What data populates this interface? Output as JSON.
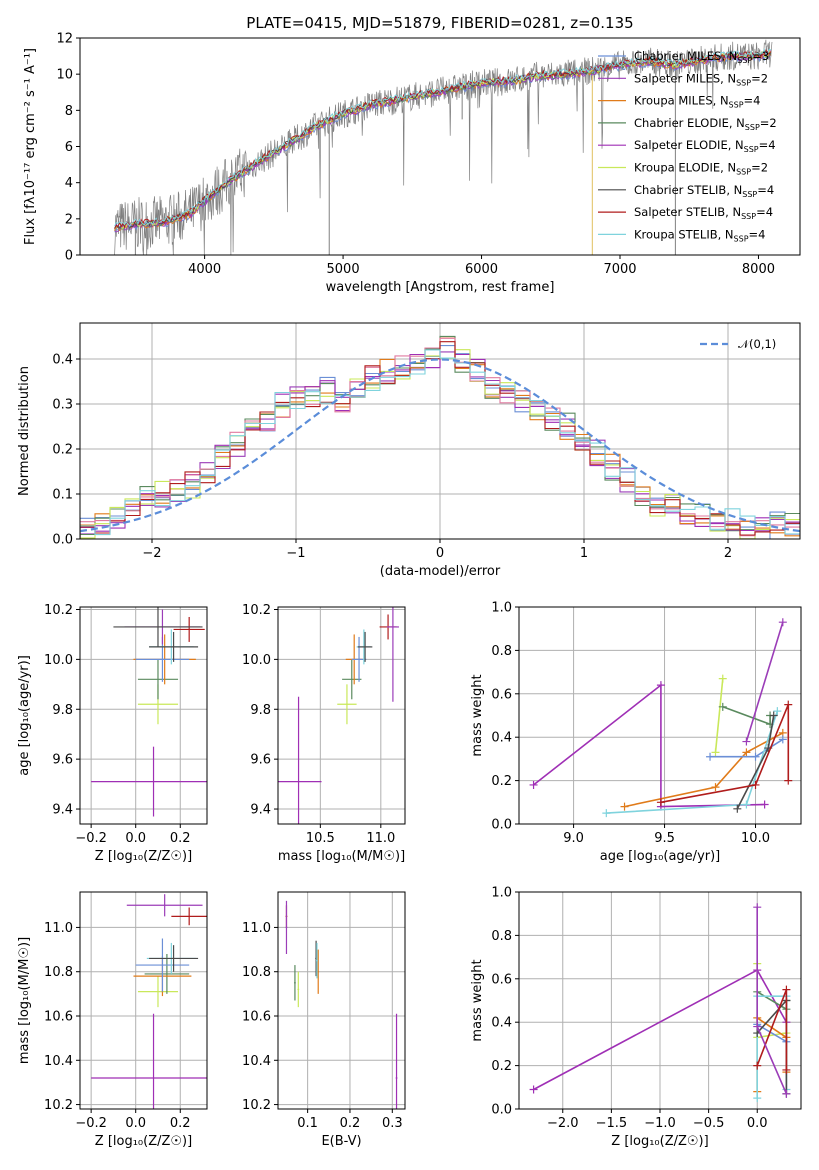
{
  "colors": {
    "grid": "#b0b0b0",
    "series": [
      "#6b8fd6",
      "#9b3db8",
      "#e07b1a",
      "#5a8a5e",
      "#9f2fb5",
      "#c9e85a",
      "#4a4a4a",
      "#b01c1c",
      "#7fd3dd"
    ],
    "hist": [
      "#6b8fd6",
      "#9b3db8",
      "#e07b1a",
      "#5a8a5e",
      "#9f2fb5",
      "#c9e85a",
      "#e07ba0",
      "#b01c1c",
      "#7fd3dd"
    ],
    "spec_data": "#808080",
    "gauss": "#5b8dd9"
  },
  "chart_data": [
    {
      "id": "spectrum",
      "type": "line",
      "title": "PLATE=0415, MJD=51879, FIBERID=0281, z=0.135",
      "xlabel": "wavelength [Angstrom, rest frame]",
      "ylabel": "Flux [fλ10⁻¹⁷ erg cm⁻² s⁻¹ A⁻¹]",
      "xlim": [
        3100,
        8300
      ],
      "ylim": [
        0,
        12
      ],
      "xticks": [
        4000,
        5000,
        6000,
        7000,
        8000
      ],
      "yticks": [
        0,
        2,
        4,
        6,
        8,
        10,
        12
      ],
      "grid": false,
      "legend_position": "upper-right",
      "legend": [
        "Chabrier MILES, N_SSP=3",
        "Salpeter MILES, N_SSP=2",
        "Kroupa MILES, N_SSP=4",
        "Chabrier ELODIE, N_SSP=2",
        "Salpeter ELODIE, N_SSP=4",
        "Kroupa ELODIE, N_SSP=2",
        "Chabrier STELIB, N_SSP=4",
        "Salpeter STELIB, N_SSP=4",
        "Kroupa STELIB, N_SSP=4"
      ],
      "model_curve": {
        "x": [
          3350,
          3500,
          3700,
          3900,
          4000,
          4200,
          4400,
          4600,
          4800,
          5000,
          5200,
          5400,
          5600,
          5800,
          6000,
          6200,
          6400,
          6600,
          6800,
          7000,
          7200,
          7400,
          7600,
          7800,
          8000,
          8100
        ],
        "y": [
          1.5,
          1.7,
          1.8,
          2.3,
          3.0,
          4.2,
          5.2,
          6.1,
          7.1,
          7.8,
          8.3,
          8.6,
          8.9,
          9.2,
          9.5,
          9.6,
          9.9,
          10.0,
          10.2,
          10.5,
          10.7,
          10.5,
          10.8,
          11.0,
          11.0,
          11.2
        ]
      }
    },
    {
      "id": "residuals",
      "type": "line",
      "xlabel": "(data-model)/error",
      "ylabel": "Normed distribution",
      "xlim": [
        -2.5,
        2.5
      ],
      "ylim": [
        0,
        0.48
      ],
      "xticks": [
        -2,
        -1,
        0,
        1,
        2
      ],
      "yticks": [
        0.0,
        0.1,
        0.2,
        0.3,
        0.4
      ],
      "grid": true,
      "legend": [
        "𝒩(0,1)"
      ],
      "legend_position": "upper-right",
      "hist_base": [
        0.02,
        0.03,
        0.05,
        0.07,
        0.09,
        0.1,
        0.11,
        0.12,
        0.15,
        0.18,
        0.21,
        0.24,
        0.27,
        0.3,
        0.31,
        0.32,
        0.33,
        0.31,
        0.34,
        0.36,
        0.37,
        0.38,
        0.39,
        0.41,
        0.43,
        0.4,
        0.37,
        0.34,
        0.32,
        0.3,
        0.29,
        0.27,
        0.25,
        0.22,
        0.19,
        0.16,
        0.13,
        0.1,
        0.08,
        0.07,
        0.06,
        0.05,
        0.04,
        0.04,
        0.03,
        0.03,
        0.03,
        0.03
      ]
    },
    {
      "id": "age-vs-Z",
      "type": "scatter",
      "xlabel": "Z [log₁₀(Z/Z☉)]",
      "ylabel": "age  [log₁₀(age/yr)]",
      "xlim": [
        -0.25,
        0.32
      ],
      "ylim": [
        9.34,
        10.21
      ],
      "xticks": [
        -0.2,
        0.0,
        0.2
      ],
      "yticks": [
        9.4,
        9.6,
        9.8,
        10.0,
        10.2
      ],
      "grid": true,
      "points": [
        {
          "x": 0.08,
          "y": 9.51,
          "xerr": 0.28,
          "yerr": 0.14,
          "color": 4
        },
        {
          "x": 0.1,
          "y": 9.82,
          "xerr": 0.09,
          "yerr": 0.08,
          "color": 5
        },
        {
          "x": 0.1,
          "y": 9.92,
          "xerr": 0.09,
          "yerr": 0.08,
          "color": 3
        },
        {
          "x": 0.13,
          "y": 10.0,
          "xerr": 0.14,
          "yerr": 0.1,
          "color": 2
        },
        {
          "x": 0.12,
          "y": 10.0,
          "xerr": 0.12,
          "yerr": 0.09,
          "color": 0
        },
        {
          "x": 0.16,
          "y": 10.05,
          "xerr": 0.1,
          "yerr": 0.07,
          "color": 8
        },
        {
          "x": 0.17,
          "y": 10.05,
          "xerr": 0.11,
          "yerr": 0.06,
          "color": 6
        },
        {
          "x": 0.12,
          "y": 10.13,
          "xerr": 0.17,
          "yerr": 0.07,
          "color": 1
        },
        {
          "x": 0.24,
          "y": 10.12,
          "xerr": 0.07,
          "yerr": 0.05,
          "color": 7
        },
        {
          "x": 0.1,
          "y": 10.13,
          "xerr": 0.2,
          "yerr": 0.08,
          "color": 6
        }
      ]
    },
    {
      "id": "age-vs-mass",
      "type": "scatter",
      "xlabel": "mass [log₁₀(M/M☉)]",
      "ylabel": "",
      "xlim": [
        10.15,
        11.2
      ],
      "ylim": [
        9.34,
        10.21
      ],
      "xticks": [
        10.5,
        11.0
      ],
      "yticks": [
        9.4,
        9.6,
        9.8,
        10.0,
        10.2
      ],
      "grid": true,
      "points": [
        {
          "x": 10.32,
          "y": 9.51,
          "xerr": 0.19,
          "yerr": 0.34,
          "color": 4
        },
        {
          "x": 10.72,
          "y": 9.82,
          "xerr": 0.08,
          "yerr": 0.08,
          "color": 5
        },
        {
          "x": 10.76,
          "y": 9.92,
          "xerr": 0.08,
          "yerr": 0.08,
          "color": 3
        },
        {
          "x": 10.78,
          "y": 10.0,
          "xerr": 0.07,
          "yerr": 0.1,
          "color": 2
        },
        {
          "x": 10.82,
          "y": 10.0,
          "xerr": 0.06,
          "yerr": 0.09,
          "color": 0
        },
        {
          "x": 10.86,
          "y": 10.05,
          "xerr": 0.06,
          "yerr": 0.07,
          "color": 8
        },
        {
          "x": 10.87,
          "y": 10.05,
          "xerr": 0.06,
          "yerr": 0.06,
          "color": 6
        },
        {
          "x": 11.06,
          "y": 10.13,
          "xerr": 0.07,
          "yerr": 0.05,
          "color": 7
        },
        {
          "x": 11.1,
          "y": 10.13,
          "xerr": 0.05,
          "yerr": 0.3,
          "color": 1
        }
      ]
    },
    {
      "id": "weight-vs-age",
      "type": "line",
      "xlabel": "age  [log₁₀(age/yr)]",
      "ylabel": "mass weight",
      "xlim": [
        8.7,
        10.25
      ],
      "ylim": [
        0,
        1.0
      ],
      "xticks": [
        9.0,
        9.5,
        10.0
      ],
      "yticks": [
        0.0,
        0.2,
        0.4,
        0.6,
        0.8,
        1.0
      ],
      "grid": true,
      "series": [
        {
          "color": 4,
          "x": [
            8.78,
            9.48,
            9.48,
            10.05
          ],
          "y": [
            0.18,
            0.64,
            0.08,
            0.09
          ]
        },
        {
          "color": 5,
          "x": [
            9.78,
            9.82
          ],
          "y": [
            0.33,
            0.67
          ]
        },
        {
          "color": 3,
          "x": [
            9.82,
            10.08,
            10.08
          ],
          "y": [
            0.54,
            0.46,
            0.5
          ]
        },
        {
          "color": 2,
          "x": [
            9.28,
            9.78,
            9.95,
            10.15
          ],
          "y": [
            0.08,
            0.17,
            0.33,
            0.42
          ]
        },
        {
          "color": 0,
          "x": [
            9.75,
            10.0,
            10.15
          ],
          "y": [
            0.31,
            0.31,
            0.39
          ]
        },
        {
          "color": 8,
          "x": [
            9.18,
            9.95,
            10.12
          ],
          "y": [
            0.05,
            0.09,
            0.52
          ]
        },
        {
          "color": 6,
          "x": [
            9.9,
            10.07,
            10.1
          ],
          "y": [
            0.07,
            0.35,
            0.5
          ]
        },
        {
          "color": 7,
          "x": [
            9.48,
            10.0,
            10.18,
            10.18
          ],
          "y": [
            0.1,
            0.18,
            0.55,
            0.2
          ]
        },
        {
          "color": 1,
          "x": [
            9.95,
            10.15
          ],
          "y": [
            0.38,
            0.93
          ]
        }
      ]
    },
    {
      "id": "mass-vs-Z",
      "type": "scatter",
      "xlabel": "Z [log₁₀(Z/Z☉)]",
      "ylabel": "mass [log₁₀(M/M☉)]",
      "xlim": [
        -0.25,
        0.32
      ],
      "ylim": [
        10.18,
        11.16
      ],
      "xticks": [
        -0.2,
        0.0,
        0.2
      ],
      "yticks": [
        10.2,
        10.4,
        10.6,
        10.8,
        11.0
      ],
      "grid": true,
      "points": [
        {
          "x": 0.08,
          "y": 10.32,
          "xerr": 0.28,
          "yerr": 0.29,
          "color": 4
        },
        {
          "x": 0.1,
          "y": 10.71,
          "xerr": 0.09,
          "yerr": 0.07,
          "color": 5
        },
        {
          "x": 0.14,
          "y": 10.79,
          "xerr": 0.1,
          "yerr": 0.09,
          "color": 3
        },
        {
          "x": 0.12,
          "y": 10.78,
          "xerr": 0.13,
          "yerr": 0.09,
          "color": 2
        },
        {
          "x": 0.12,
          "y": 10.83,
          "xerr": 0.12,
          "yerr": 0.12,
          "color": 0
        },
        {
          "x": 0.16,
          "y": 10.86,
          "xerr": 0.11,
          "yerr": 0.07,
          "color": 8
        },
        {
          "x": 0.17,
          "y": 10.86,
          "xerr": 0.11,
          "yerr": 0.06,
          "color": 6
        },
        {
          "x": 0.13,
          "y": 11.1,
          "xerr": 0.17,
          "yerr": 0.05,
          "color": 1
        },
        {
          "x": 0.24,
          "y": 11.05,
          "xerr": 0.08,
          "yerr": 0.04,
          "color": 7
        }
      ]
    },
    {
      "id": "mass-vs-EBV",
      "type": "scatter",
      "xlabel": "E(B-V)",
      "ylabel": "",
      "xlim": [
        0.03,
        0.33
      ],
      "ylim": [
        10.18,
        11.16
      ],
      "xticks": [
        0.1,
        0.2,
        0.3
      ],
      "yticks": [
        10.2,
        10.4,
        10.6,
        10.8,
        11.0
      ],
      "grid": true,
      "points": [
        {
          "x": 0.05,
          "y": 11.05,
          "xerr": 0.002,
          "yerr": 0.05,
          "color": 7
        },
        {
          "x": 0.05,
          "y": 11.0,
          "xerr": 0.002,
          "yerr": 0.12,
          "color": 1
        },
        {
          "x": 0.07,
          "y": 10.75,
          "xerr": 0.002,
          "yerr": 0.08,
          "color": 3
        },
        {
          "x": 0.078,
          "y": 10.72,
          "xerr": 0.002,
          "yerr": 0.08,
          "color": 5
        },
        {
          "x": 0.12,
          "y": 10.86,
          "xerr": 0.002,
          "yerr": 0.08,
          "color": 6
        },
        {
          "x": 0.125,
          "y": 10.8,
          "xerr": 0.002,
          "yerr": 0.1,
          "color": 2
        },
        {
          "x": 0.122,
          "y": 10.85,
          "xerr": 0.002,
          "yerr": 0.08,
          "color": 8
        },
        {
          "x": 0.31,
          "y": 10.32,
          "xerr": 0.002,
          "yerr": 0.29,
          "color": 4
        }
      ]
    },
    {
      "id": "weight-vs-Z",
      "type": "line",
      "xlabel": "Z [log₁₀(Z/Z☉)]",
      "ylabel": "mass weight",
      "xlim": [
        -2.45,
        0.45
      ],
      "ylim": [
        0,
        1.0
      ],
      "xticks": [
        -2.0,
        -1.5,
        -1.0,
        -0.5,
        0.0
      ],
      "yticks": [
        0.0,
        0.2,
        0.4,
        0.6,
        0.8,
        1.0
      ],
      "grid": true,
      "series": [
        {
          "color": 4,
          "x": [
            -2.3,
            0.0,
            0.3
          ],
          "y": [
            0.09,
            0.64,
            0.4
          ]
        },
        {
          "color": 5,
          "x": [
            0.0,
            0.0,
            0.3
          ],
          "y": [
            0.67,
            0.33,
            0.35
          ]
        },
        {
          "color": 3,
          "x": [
            0.0,
            0.3,
            0.3
          ],
          "y": [
            0.54,
            0.46,
            0.5
          ]
        },
        {
          "color": 2,
          "x": [
            0.0,
            0.0,
            0.3,
            0.3
          ],
          "y": [
            0.08,
            0.42,
            0.33,
            0.17
          ]
        },
        {
          "color": 0,
          "x": [
            0.0,
            0.3
          ],
          "y": [
            0.39,
            0.31
          ]
        },
        {
          "color": 8,
          "x": [
            0.0,
            0.0,
            0.3,
            0.3
          ],
          "y": [
            0.05,
            0.52,
            0.52,
            0.09
          ]
        },
        {
          "color": 6,
          "x": [
            0.0,
            0.3,
            0.3
          ],
          "y": [
            0.35,
            0.5,
            0.07
          ]
        },
        {
          "color": 7,
          "x": [
            0.0,
            0.3,
            0.3
          ],
          "y": [
            0.2,
            0.55,
            0.18
          ]
        },
        {
          "color": 1,
          "x": [
            0.0,
            0.0,
            0.3
          ],
          "y": [
            0.93,
            0.38,
            0.07
          ]
        }
      ]
    }
  ]
}
